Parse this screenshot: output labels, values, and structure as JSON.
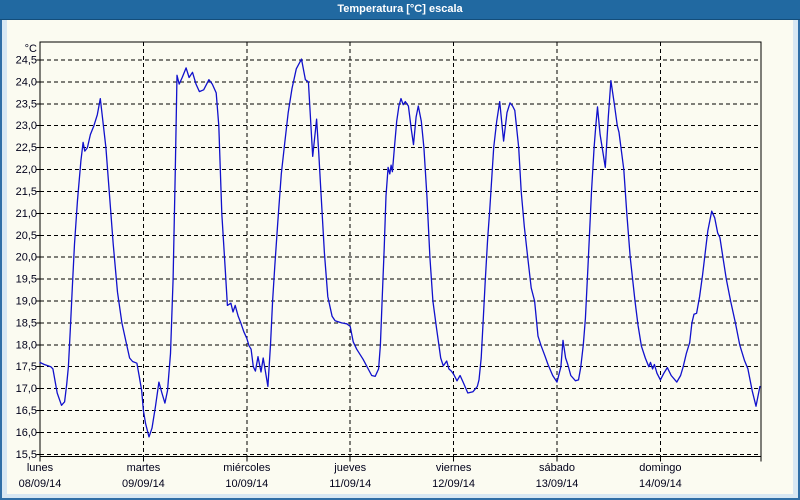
{
  "window": {
    "title": "Temperatura [°C] escala"
  },
  "colors": {
    "titlebar_bg": "#2169a1",
    "window_frame": "#2f6ea6",
    "outer_bg": "#d7e7f3",
    "plot_bg": "#fbfbf1",
    "grid": "#000000",
    "axis_text": "#00001a",
    "line": "#1111cc"
  },
  "chart_data": {
    "type": "line",
    "title": "Temperatura [°C] escala",
    "y_unit_label": "°C",
    "ylabel": "",
    "xlabel": "",
    "ylim": [
      15.5,
      24.5
    ],
    "y_tick_step": 0.5,
    "grid": "dashed",
    "legend_position": "none",
    "y_tick_labels": [
      "24,5",
      "24,0",
      "23,5",
      "23,0",
      "22,5",
      "22,0",
      "21,5",
      "21,0",
      "20,5",
      "20,0",
      "19,5",
      "19,0",
      "18,5",
      "18,0",
      "17,5",
      "17,0",
      "16,5",
      "16,0",
      "15,5"
    ],
    "x_axis_days": [
      {
        "name": "lunes",
        "date": "08/09/14"
      },
      {
        "name": "martes",
        "date": "09/09/14"
      },
      {
        "name": "miércoles",
        "date": "10/09/14"
      },
      {
        "name": "jueves",
        "date": "11/09/14"
      },
      {
        "name": "viernes",
        "date": "12/09/14"
      },
      {
        "name": "sábado",
        "date": "13/09/14"
      },
      {
        "name": "domingo",
        "date": "14/09/14"
      }
    ],
    "series": [
      {
        "name": "Temperatura [°C]",
        "color": "#1111cc",
        "points_hours_temp": [
          [
            0,
            17.6
          ],
          [
            1,
            17.55
          ],
          [
            2.5,
            17.5
          ],
          [
            3,
            17.45
          ],
          [
            4,
            16.9
          ],
          [
            5,
            16.62
          ],
          [
            5.7,
            16.7
          ],
          [
            6.2,
            17.1
          ],
          [
            6.6,
            17.5
          ],
          [
            7,
            18.3
          ],
          [
            7.5,
            19.3
          ],
          [
            8,
            20.3
          ],
          [
            8.7,
            21.3
          ],
          [
            9.5,
            22.2
          ],
          [
            10,
            22.62
          ],
          [
            10.4,
            22.42
          ],
          [
            11,
            22.5
          ],
          [
            11.7,
            22.8
          ],
          [
            12.5,
            23.0
          ],
          [
            13.3,
            23.25
          ],
          [
            14,
            23.62
          ],
          [
            14.6,
            23.1
          ],
          [
            15.3,
            22.5
          ],
          [
            16,
            21.6
          ],
          [
            17,
            20.3
          ],
          [
            18,
            19.2
          ],
          [
            19,
            18.5
          ],
          [
            20,
            18.05
          ],
          [
            20.8,
            17.7
          ],
          [
            21.5,
            17.62
          ],
          [
            22.5,
            17.58
          ],
          [
            23,
            17.3
          ],
          [
            23.6,
            16.95
          ],
          [
            24,
            16.5
          ],
          [
            24.5,
            16.2
          ],
          [
            25.3,
            15.9
          ],
          [
            26,
            16.1
          ],
          [
            26.8,
            16.6
          ],
          [
            27.6,
            17.15
          ],
          [
            28.3,
            16.9
          ],
          [
            29,
            16.67
          ],
          [
            29.6,
            16.95
          ],
          [
            30.3,
            17.8
          ],
          [
            30.9,
            19.5
          ],
          [
            31.4,
            22.0
          ],
          [
            31.8,
            24.15
          ],
          [
            32.3,
            23.95
          ],
          [
            33,
            24.1
          ],
          [
            33.9,
            24.32
          ],
          [
            34.6,
            24.1
          ],
          [
            35.4,
            24.22
          ],
          [
            36.2,
            23.95
          ],
          [
            37,
            23.78
          ],
          [
            38,
            23.82
          ],
          [
            39.2,
            24.05
          ],
          [
            40,
            23.95
          ],
          [
            40.9,
            23.75
          ],
          [
            41.5,
            23.0
          ],
          [
            42.2,
            21.0
          ],
          [
            43,
            19.7
          ],
          [
            43.5,
            18.9
          ],
          [
            44.3,
            18.95
          ],
          [
            44.8,
            18.75
          ],
          [
            45.3,
            18.9
          ],
          [
            46,
            18.65
          ],
          [
            46.6,
            18.5
          ],
          [
            47.3,
            18.3
          ],
          [
            48,
            18.15
          ],
          [
            48.5,
            17.98
          ],
          [
            49,
            17.9
          ],
          [
            49.5,
            17.5
          ],
          [
            50,
            17.4
          ],
          [
            50.6,
            17.73
          ],
          [
            51.3,
            17.38
          ],
          [
            51.8,
            17.7
          ],
          [
            52.9,
            17.05
          ],
          [
            53.5,
            18.0
          ],
          [
            54,
            19.0
          ],
          [
            54.5,
            19.8
          ],
          [
            55.2,
            20.8
          ],
          [
            56,
            21.9
          ],
          [
            56.8,
            22.6
          ],
          [
            57.6,
            23.3
          ],
          [
            58.5,
            23.85
          ],
          [
            59.5,
            24.3
          ],
          [
            60.7,
            24.52
          ],
          [
            61.6,
            24.05
          ],
          [
            62.3,
            24.0
          ],
          [
            63.3,
            22.3
          ],
          [
            64.2,
            23.15
          ],
          [
            64.7,
            22.4
          ],
          [
            65.2,
            21.5
          ],
          [
            66,
            20.1
          ],
          [
            66.8,
            19.1
          ],
          [
            67.8,
            18.65
          ],
          [
            68.5,
            18.55
          ],
          [
            70,
            18.5
          ],
          [
            71.2,
            18.48
          ],
          [
            72,
            18.42
          ],
          [
            72.7,
            18.07
          ],
          [
            73.5,
            17.9
          ],
          [
            75,
            17.67
          ],
          [
            77,
            17.3
          ],
          [
            77.8,
            17.28
          ],
          [
            78.6,
            17.45
          ],
          [
            79,
            18.0
          ],
          [
            79.4,
            19.0
          ],
          [
            79.9,
            20.2
          ],
          [
            80.3,
            21.4
          ],
          [
            80.8,
            22.05
          ],
          [
            81.2,
            21.9
          ],
          [
            81.5,
            22.1
          ],
          [
            81.8,
            21.95
          ],
          [
            82.3,
            22.55
          ],
          [
            82.8,
            23.1
          ],
          [
            83.3,
            23.45
          ],
          [
            83.8,
            23.62
          ],
          [
            84.3,
            23.48
          ],
          [
            84.8,
            23.55
          ],
          [
            85.5,
            23.45
          ],
          [
            86.2,
            22.9
          ],
          [
            86.7,
            22.57
          ],
          [
            87.3,
            23.2
          ],
          [
            87.8,
            23.45
          ],
          [
            88.5,
            23.1
          ],
          [
            89.1,
            22.5
          ],
          [
            89.8,
            21.4
          ],
          [
            90.5,
            20.0
          ],
          [
            91.2,
            19.0
          ],
          [
            92,
            18.4
          ],
          [
            93,
            17.7
          ],
          [
            93.6,
            17.52
          ],
          [
            94.4,
            17.63
          ],
          [
            94.9,
            17.45
          ],
          [
            95.5,
            17.4
          ],
          [
            96,
            17.33
          ],
          [
            96.8,
            17.18
          ],
          [
            97.5,
            17.3
          ],
          [
            98.2,
            17.15
          ],
          [
            99.3,
            16.9
          ],
          [
            100.5,
            16.93
          ],
          [
            101.5,
            17.05
          ],
          [
            101.9,
            17.2
          ],
          [
            102.4,
            17.7
          ],
          [
            102.9,
            18.6
          ],
          [
            103.3,
            19.4
          ],
          [
            103.9,
            20.4
          ],
          [
            104.4,
            21.1
          ],
          [
            105.3,
            22.5
          ],
          [
            106,
            23.1
          ],
          [
            106.7,
            23.55
          ],
          [
            107.6,
            22.65
          ],
          [
            108.4,
            23.3
          ],
          [
            109.1,
            23.52
          ],
          [
            109.7,
            23.45
          ],
          [
            110.2,
            23.35
          ],
          [
            111.1,
            22.5
          ],
          [
            111.7,
            21.5
          ],
          [
            112.4,
            20.7
          ],
          [
            113.2,
            20.0
          ],
          [
            114,
            19.3
          ],
          [
            114.8,
            19.0
          ],
          [
            115.6,
            18.2
          ],
          [
            116.3,
            17.98
          ],
          [
            117.2,
            17.75
          ],
          [
            117.9,
            17.55
          ],
          [
            119,
            17.3
          ],
          [
            120,
            17.15
          ],
          [
            120.9,
            17.5
          ],
          [
            121.4,
            18.1
          ],
          [
            122,
            17.7
          ],
          [
            122.5,
            17.55
          ],
          [
            123.2,
            17.3
          ],
          [
            124.3,
            17.18
          ],
          [
            125,
            17.2
          ],
          [
            125.5,
            17.48
          ],
          [
            126.1,
            18.0
          ],
          [
            126.6,
            18.6
          ],
          [
            127.2,
            19.8
          ],
          [
            128,
            21.5
          ],
          [
            128.6,
            22.5
          ],
          [
            129,
            23.0
          ],
          [
            129.4,
            23.43
          ],
          [
            130,
            22.8
          ],
          [
            131.2,
            22.05
          ],
          [
            131.9,
            23.2
          ],
          [
            132.5,
            24.03
          ],
          [
            133.3,
            23.5
          ],
          [
            134,
            23.0
          ],
          [
            134.4,
            22.85
          ],
          [
            135.5,
            22.0
          ],
          [
            136.2,
            21.0
          ],
          [
            137,
            20.0
          ],
          [
            138.1,
            19.0
          ],
          [
            138.8,
            18.45
          ],
          [
            139.6,
            17.97
          ],
          [
            140.5,
            17.7
          ],
          [
            141.3,
            17.5
          ],
          [
            141.7,
            17.6
          ],
          [
            142.2,
            17.45
          ],
          [
            142.6,
            17.55
          ],
          [
            143.2,
            17.35
          ],
          [
            144,
            17.2
          ],
          [
            144.8,
            17.35
          ],
          [
            145.6,
            17.48
          ],
          [
            146.5,
            17.3
          ],
          [
            147.8,
            17.15
          ],
          [
            148.7,
            17.3
          ],
          [
            149.3,
            17.5
          ],
          [
            150,
            17.8
          ],
          [
            150.8,
            18.05
          ],
          [
            151.3,
            18.5
          ],
          [
            151.8,
            18.7
          ],
          [
            152.4,
            18.72
          ],
          [
            153.1,
            19.1
          ],
          [
            153.8,
            19.6
          ],
          [
            154.4,
            20.1
          ],
          [
            155,
            20.6
          ],
          [
            155.9,
            21.05
          ],
          [
            156.6,
            20.9
          ],
          [
            157.3,
            20.55
          ],
          [
            157.8,
            20.45
          ],
          [
            158.5,
            20.0
          ],
          [
            159.3,
            19.5
          ],
          [
            160.3,
            19.0
          ],
          [
            161.4,
            18.5
          ],
          [
            162.4,
            18.0
          ],
          [
            163.5,
            17.65
          ],
          [
            164.3,
            17.45
          ],
          [
            165.3,
            16.95
          ],
          [
            166.2,
            16.6
          ],
          [
            167.1,
            17.05
          ]
        ]
      }
    ]
  }
}
